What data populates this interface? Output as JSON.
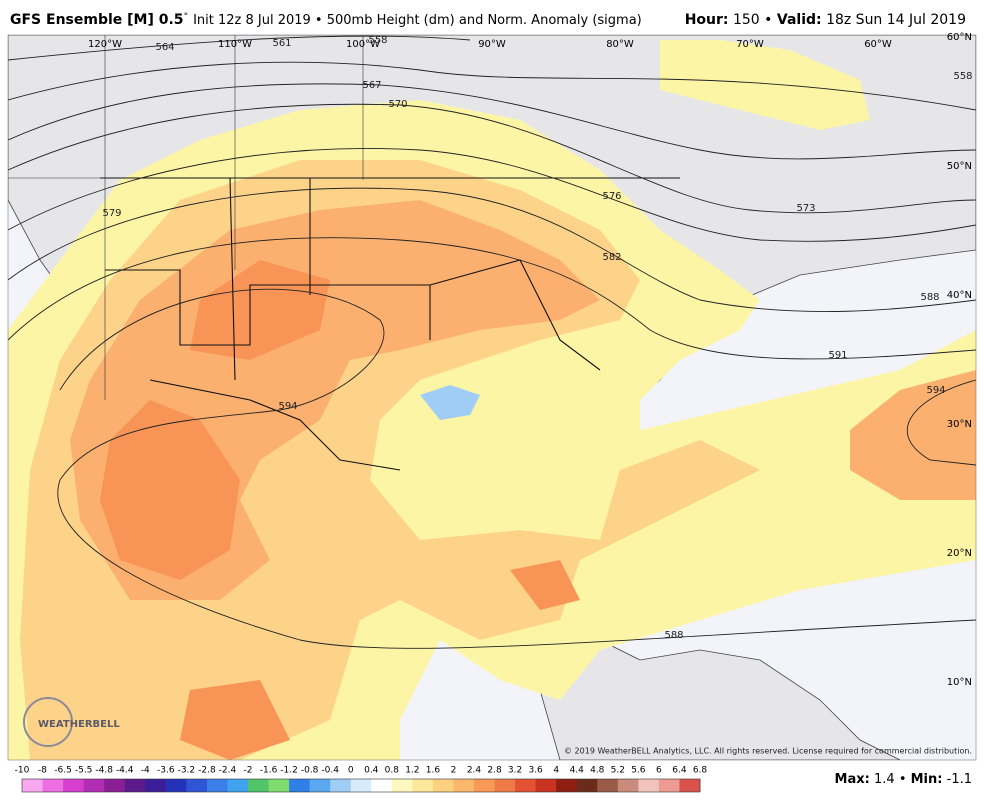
{
  "header": {
    "title": "GFS Ensemble [M] 0.5",
    "degree": "°",
    "subtitle": "Init 12z 8 Jul 2019 • 500mb Height (dm) and Norm. Anomaly (sigma)",
    "hour_label": "Hour:",
    "hour": "150",
    "separator": "•",
    "valid_label": "Valid:",
    "valid": "18z Sun 14 Jul 2019"
  },
  "map": {
    "longitudes": [
      "120°W",
      "110°W",
      "100°W",
      "90°W",
      "80°W",
      "70°W",
      "60°W"
    ],
    "latitudes": [
      "60°N",
      "50°N",
      "40°N",
      "30°N",
      "20°N",
      "10°N"
    ],
    "contour_labels": [
      "564",
      "561",
      "558",
      "567",
      "570",
      "576",
      "579",
      "573",
      "582",
      "588",
      "588",
      "591",
      "594",
      "594",
      "558"
    ],
    "logo": "WEATHERBELL",
    "copyright": "© 2019 WeatherBELL Analytics, LLC. All rights reserved. License required for commercial distribution."
  },
  "colorbar": {
    "labels": [
      "-10",
      "-8",
      "-6.5",
      "-5.5",
      "-4.8",
      "-4.4",
      "-4",
      "-3.6",
      "-3.2",
      "-2.8",
      "-2.4",
      "-2",
      "-1.6",
      "-1.2",
      "-0.8",
      "-0.4",
      "0",
      "0.4",
      "0.8",
      "1.2",
      "1.6",
      "2",
      "2.4",
      "2.8",
      "3.2",
      "3.6",
      "4",
      "4.4",
      "4.8",
      "5.2",
      "5.6",
      "6",
      "6.4",
      "6.8"
    ],
    "colors": [
      "#f7a8f0",
      "#ee6ee4",
      "#d63fd0",
      "#b22db3",
      "#8a1f96",
      "#5c1a8c",
      "#3b1e9a",
      "#2432b8",
      "#2f55d6",
      "#3a7ee8",
      "#3fa3ee",
      "#52c46a",
      "#7fdc6e",
      "#2f7fe6",
      "#5aa8f0",
      "#9fcdf6",
      "#d6ebfb",
      "#ffffff",
      "#fff9c0",
      "#fde79a",
      "#fdd17f",
      "#fbb76b",
      "#f79a58",
      "#f07a45",
      "#e35233",
      "#c93322",
      "#8e1d12",
      "#6a2a1c",
      "#9a5a48",
      "#c98c7c",
      "#f0c4bc",
      "#ee9b94",
      "#d9534c",
      "#b8232a"
    ]
  },
  "footer": {
    "max_label": "Max:",
    "max": "1.4",
    "separator": "•",
    "min_label": "Min:",
    "min": "-1.1"
  }
}
